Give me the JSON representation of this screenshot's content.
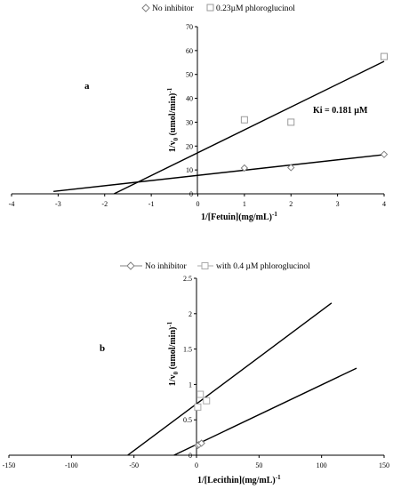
{
  "chart_data": [
    {
      "type": "scatter",
      "panel_label": "a",
      "xlabel_main": "1/[Fetuin](mg/mL)",
      "xlabel_sup": "-1",
      "ylabel_main": "1/v",
      "ylabel_sub": "0",
      "ylabel_rest": " (umol/min)",
      "ylabel_sup": "-1",
      "xlim": [
        -4,
        4
      ],
      "ylim": [
        0,
        70
      ],
      "xticks": [
        -4,
        -3,
        -2,
        -1,
        0,
        1,
        2,
        3,
        4
      ],
      "yticks": [
        0,
        10,
        20,
        30,
        40,
        50,
        60,
        70
      ],
      "annotation": "Ki = 0.181 µM",
      "legend_position": "top-center",
      "series": [
        {
          "name": "No inhibitor",
          "marker": "diamond",
          "color": "#808080",
          "points": [
            [
              1,
              10.8
            ],
            [
              2,
              11.0
            ],
            [
              4,
              16.5
            ]
          ],
          "line": [
            [
              -3.1,
              1.0
            ],
            [
              4,
              16.4
            ]
          ]
        },
        {
          "name": "0.23µM phloroglucinol",
          "marker": "square",
          "color": "#9a9a9a",
          "points": [
            [
              1,
              31.0
            ],
            [
              2,
              30.0
            ],
            [
              4,
              57.5
            ]
          ],
          "line": [
            [
              -1.8,
              0.0
            ],
            [
              4,
              55.5
            ]
          ]
        }
      ]
    },
    {
      "type": "scatter",
      "panel_label": "b",
      "xlabel_main": "1/[Lecithin](mg/mL)",
      "xlabel_sup": "-1",
      "ylabel_main": "1/v",
      "ylabel_sub": "0",
      "ylabel_rest": " (umol/min)",
      "ylabel_sup": "-1",
      "xlim": [
        -150,
        150
      ],
      "ylim": [
        0,
        2.5
      ],
      "xticks": [
        -150,
        -100,
        -50,
        0,
        50,
        100,
        150
      ],
      "yticks": [
        0,
        0.5,
        1,
        1.5,
        2,
        2.5
      ],
      "xtick_labels": [
        "-150",
        "-100",
        "-50",
        "0",
        "50",
        "100",
        "150"
      ],
      "ytick_labels": [
        "0",
        "0.5",
        "1",
        "1.5",
        "2",
        "2.5"
      ],
      "legend_position": "top-center",
      "series": [
        {
          "name": "No inhibitor",
          "marker": "diamond",
          "color": "#808080",
          "points": [
            [
              1,
              0.14
            ],
            [
              2,
              0.15
            ],
            [
              4,
              0.17
            ]
          ],
          "line": [
            [
              -18,
              0.0
            ],
            [
              128,
              1.23
            ]
          ]
        },
        {
          "name": "with 0.4 µM phloroglucinol",
          "marker": "square",
          "color": "#aaaaaa",
          "points": [
            [
              1,
              0.68
            ],
            [
              3,
              0.86
            ],
            [
              8,
              0.77
            ]
          ],
          "line": [
            [
              -55,
              0.0
            ],
            [
              108,
              2.15
            ]
          ]
        }
      ]
    }
  ]
}
